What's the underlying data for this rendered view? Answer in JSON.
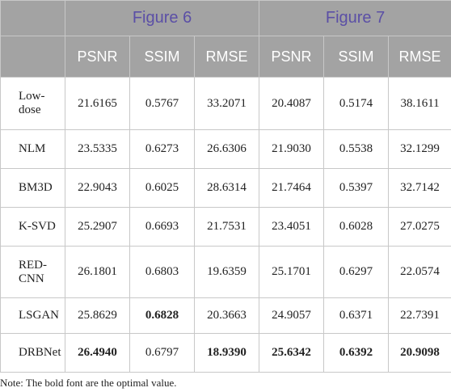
{
  "header": {
    "groups": [
      "Figure 6",
      "Figure 7"
    ],
    "columns": [
      "PSNR",
      "SSIM",
      "RMSE",
      "PSNR",
      "SSIM",
      "RMSE"
    ]
  },
  "table": {
    "rows": [
      [
        "Low-dose",
        "21.6165",
        "0.5767",
        "33.2071",
        "20.4087",
        "0.5174",
        "38.1611"
      ],
      [
        "NLM",
        "23.5335",
        "0.6273",
        "26.6306",
        "21.9030",
        "0.5538",
        "32.1299"
      ],
      [
        "BM3D",
        "22.9043",
        "0.6025",
        "28.6314",
        "21.7464",
        "0.5397",
        "32.7142"
      ],
      [
        "K-SVD",
        "25.2907",
        "0.6693",
        "21.7531",
        "23.4051",
        "0.6028",
        "27.0275"
      ],
      [
        "RED-CNN",
        "26.1801",
        "0.6803",
        "19.6359",
        "25.1701",
        "0.6297",
        "22.0574"
      ],
      [
        "LSGAN",
        "25.8629",
        "0.6828",
        "20.3663",
        "24.9057",
        "0.6371",
        "22.7391"
      ],
      [
        "DRBNet",
        "26.4940",
        "0.6797",
        "18.9390",
        "25.6342",
        "0.6392",
        "20.9098"
      ]
    ]
  },
  "note": "Note: The bold font are the optimal value."
}
